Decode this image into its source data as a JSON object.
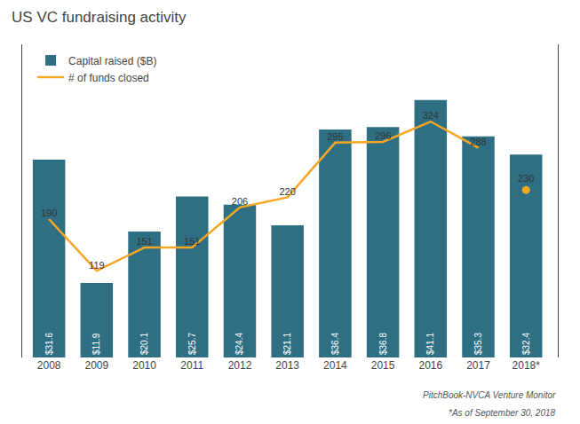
{
  "chart_data": {
    "type": "bar",
    "title": "US VC fundraising activity",
    "categories": [
      "2008",
      "2009",
      "2010",
      "2011",
      "2012",
      "2013",
      "2014",
      "2015",
      "2016",
      "2017",
      "2018*"
    ],
    "series": [
      {
        "name": "Capital raised ($B)",
        "type": "bar",
        "color": "#2e6f84",
        "values": [
          31.6,
          11.9,
          20.1,
          25.7,
          24.4,
          21.1,
          36.4,
          36.8,
          41.1,
          35.3,
          32.4
        ],
        "value_labels": [
          "$31.6",
          "$11.9",
          "$20.1",
          "$25.7",
          "$24.4",
          "$21.1",
          "$36.4",
          "$36.8",
          "$41.1",
          "$35.3",
          "$32.4"
        ]
      },
      {
        "name": "# of funds closed",
        "type": "line",
        "color": "#f5a623",
        "axis": "y2",
        "values": [
          190,
          119,
          151,
          151,
          206,
          220,
          295,
          296,
          324,
          288,
          230
        ]
      }
    ],
    "ylim": [
      0,
      50
    ],
    "yticks": [],
    "y2lim": [
      0,
      430
    ],
    "y2ticks": [],
    "tick_labels": "x",
    "grid": false,
    "legend": "upper left",
    "data_labels": true,
    "annotations": [
      "PitchBook-NVCA Venture Monitor",
      "*As of September 30, 2018"
    ]
  }
}
